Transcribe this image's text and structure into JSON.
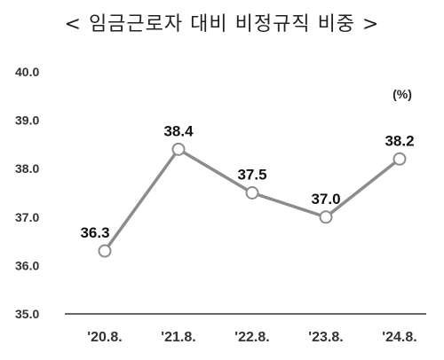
{
  "chart_data": {
    "type": "line",
    "title": "< 임금근로자 대비 비정규직 비중 >",
    "unit": "(%)",
    "categories": [
      "'20.8.",
      "'21.8.",
      "'22.8.",
      "'23.8.",
      "'24.8."
    ],
    "series": [
      {
        "values": [
          36.3,
          38.4,
          37.5,
          37.0,
          38.2
        ]
      }
    ],
    "data_labels": [
      "36.3",
      "38.4",
      "37.5",
      "37.0",
      "38.2"
    ],
    "yticks": [
      "35.0",
      "36.0",
      "37.0",
      "38.0",
      "39.0",
      "40.0"
    ],
    "ylim": [
      35.0,
      40.0
    ],
    "grid": false,
    "line_color": "#8c8c8c",
    "marker_fill": "#ffffff"
  }
}
